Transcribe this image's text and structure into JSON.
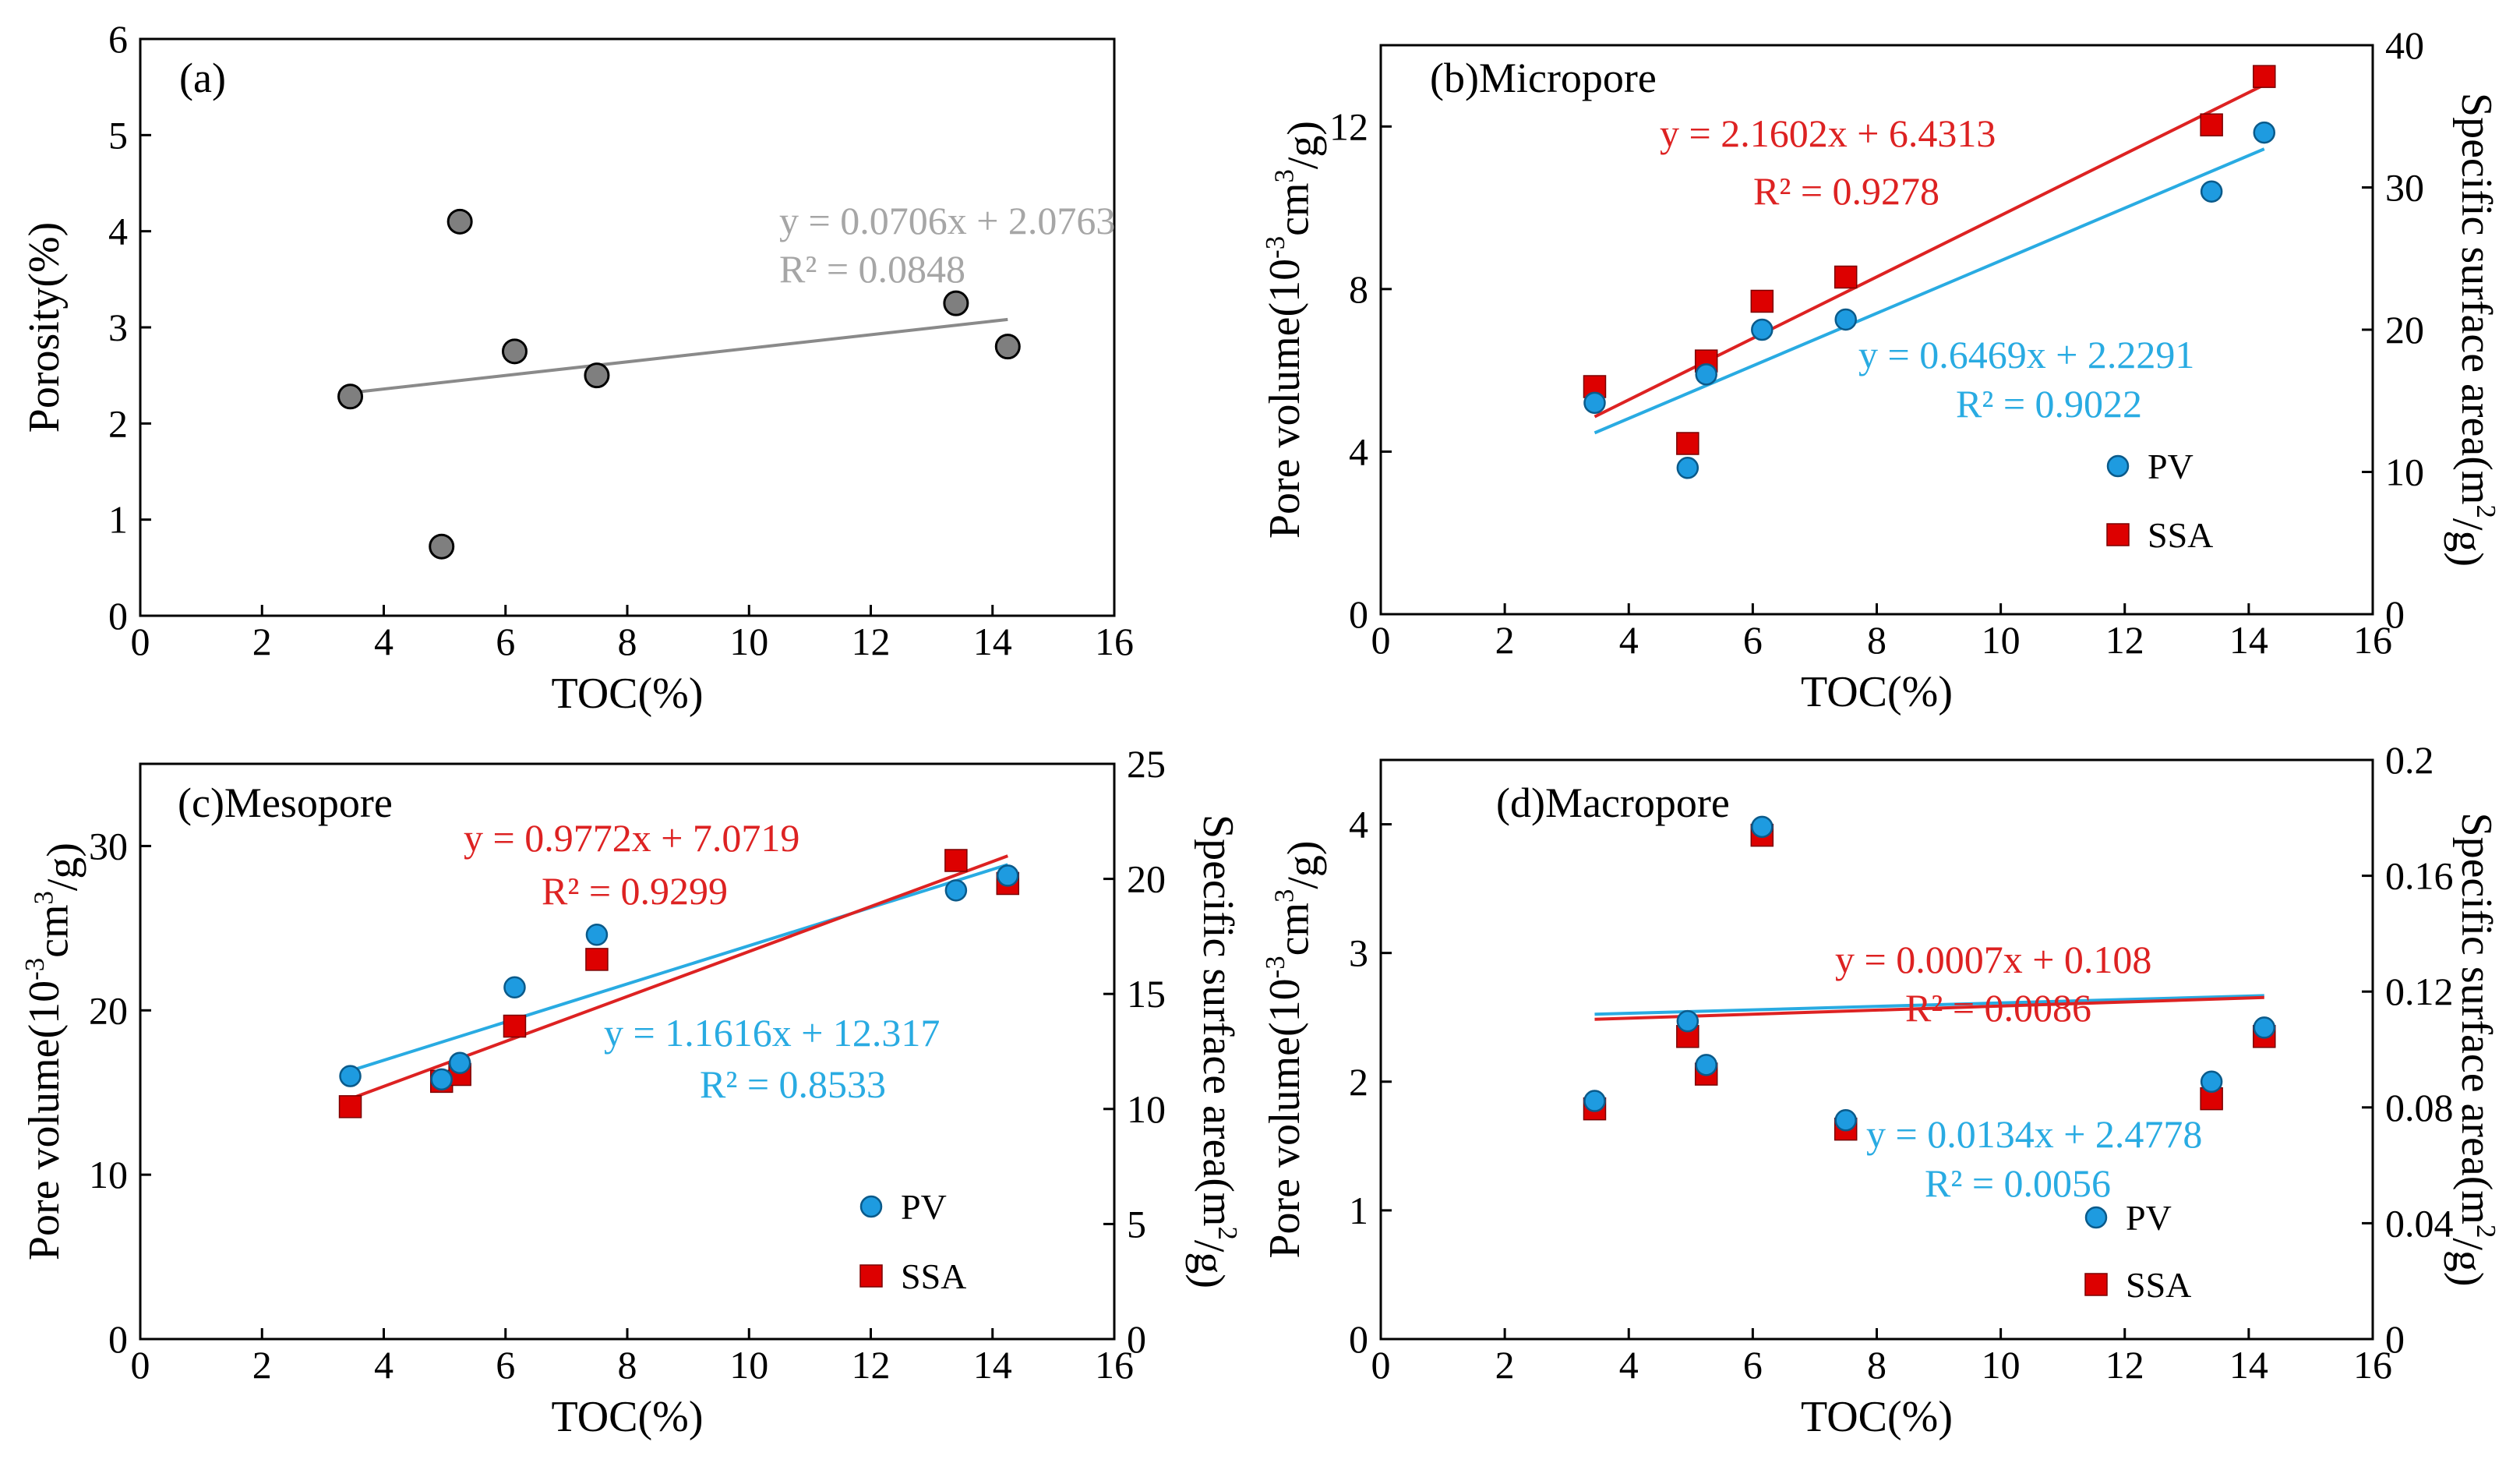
{
  "colors": {
    "pv": "#1e9be0",
    "ssa": "#dd0000",
    "fit_a": "#8a8a8a",
    "pts_a": "#7f7f7f",
    "pv_text": "#29abe2",
    "ssa_text": "#dd2222",
    "eq_a": "#a6a6a6"
  },
  "chart_data": [
    {
      "id": "a",
      "type": "scatter",
      "title": "(a)",
      "xlabel": "TOC(%)",
      "ylabel": "Porosity(%)",
      "xlim": [
        0,
        16
      ],
      "xticks": [
        0,
        2,
        4,
        6,
        8,
        10,
        12,
        14,
        16
      ],
      "ylim": [
        0,
        6
      ],
      "yticks": [
        0,
        1,
        2,
        3,
        4,
        5,
        6
      ],
      "series": [
        {
          "name": "Porosity",
          "axis": "left",
          "marker": "circle",
          "color": "#7f7f7f",
          "x": [
            3.45,
            4.95,
            5.25,
            6.15,
            7.5,
            13.4,
            14.25
          ],
          "y": [
            2.28,
            0.72,
            4.1,
            2.75,
            2.5,
            3.25,
            2.8
          ],
          "fit": {
            "slope": 0.0706,
            "intercept": 2.0763,
            "x0": 3.45,
            "x1": 14.25,
            "color": "#8a8a8a"
          },
          "equation": "y = 0.0706x + 2.0763",
          "r2": "R² = 0.0848"
        }
      ]
    },
    {
      "id": "b",
      "type": "scatter",
      "title": "(b)Micropore",
      "xlabel": "TOC(%)",
      "ylabel": "Pore volume(10⁻³cm³/g)",
      "ylabel_right": "Specific surface area(m²/g)",
      "xlim": [
        0,
        16
      ],
      "xticks": [
        0,
        2,
        4,
        6,
        8,
        10,
        12,
        14,
        16
      ],
      "ylim": [
        0,
        14
      ],
      "yticks": [
        0,
        4,
        8,
        12
      ],
      "ylim_right": [
        0,
        40
      ],
      "yticks_right": [
        0,
        10,
        20,
        30,
        40
      ],
      "series": [
        {
          "name": "PV",
          "axis": "left",
          "marker": "circle",
          "color": "#1e9be0",
          "x": [
            3.45,
            4.95,
            5.25,
            6.15,
            7.5,
            13.4,
            14.25
          ],
          "y": [
            5.2,
            3.6,
            5.9,
            7.0,
            7.25,
            10.4,
            11.85
          ],
          "fit": {
            "slope": 0.6469,
            "intercept": 2.2291,
            "x0": 3.45,
            "x1": 14.25,
            "color": "#29abe2"
          },
          "equation": "y = 0.6469x + 2.2291",
          "r2": "R² = 0.9022"
        },
        {
          "name": "SSA",
          "axis": "right",
          "marker": "square",
          "color": "#dd0000",
          "x": [
            3.45,
            4.95,
            5.25,
            6.15,
            7.5,
            13.4,
            14.25
          ],
          "y": [
            16.0,
            12.0,
            17.8,
            22.0,
            23.7,
            34.4,
            37.8
          ],
          "fit": {
            "slope": 2.1602,
            "intercept": 6.4313,
            "x0": 3.45,
            "x1": 14.25,
            "color": "#dd2222"
          },
          "equation": "y = 2.1602x + 6.4313",
          "r2": "R² = 0.9278"
        }
      ],
      "legend": [
        "PV",
        "SSA"
      ]
    },
    {
      "id": "c",
      "type": "scatter",
      "title": "(c)Mesopore",
      "xlabel": "TOC(%)",
      "ylabel": "Pore volume(10⁻³cm³/g)",
      "ylabel_right": "Specific surface area(m²/g)",
      "xlim": [
        0,
        16
      ],
      "xticks": [
        0,
        2,
        4,
        6,
        8,
        10,
        12,
        14,
        16
      ],
      "ylim": [
        0,
        35
      ],
      "yticks": [
        0,
        10,
        20,
        30
      ],
      "ylim_right": [
        0,
        25
      ],
      "yticks_right": [
        0,
        5,
        10,
        15,
        20,
        25
      ],
      "series": [
        {
          "name": "PV",
          "axis": "left",
          "marker": "circle",
          "color": "#1e9be0",
          "x": [
            3.45,
            4.95,
            5.25,
            6.15,
            7.5,
            13.4,
            14.25
          ],
          "y": [
            16.0,
            15.8,
            16.8,
            21.4,
            24.6,
            27.3,
            28.2
          ],
          "fit": {
            "slope": 1.1616,
            "intercept": 12.317,
            "x0": 3.45,
            "x1": 14.25,
            "color": "#29abe2"
          },
          "equation": "y = 1.1616x + 12.317",
          "r2": "R² = 0.8533"
        },
        {
          "name": "SSA",
          "axis": "right",
          "marker": "square",
          "color": "#dd0000",
          "x": [
            3.45,
            4.95,
            5.25,
            6.15,
            7.5,
            13.4,
            14.25
          ],
          "y": [
            10.1,
            11.2,
            11.5,
            13.6,
            16.5,
            20.8,
            19.8
          ],
          "fit": {
            "slope": 0.9772,
            "intercept": 7.0719,
            "x0": 3.45,
            "x1": 14.25,
            "color": "#dd2222"
          },
          "equation": "y = 0.9772x + 7.0719",
          "r2": "R² = 0.9299"
        }
      ],
      "legend": [
        "PV",
        "SSA"
      ]
    },
    {
      "id": "d",
      "type": "scatter",
      "title": "(d)Macropore",
      "xlabel": "TOC(%)",
      "ylabel": "Pore volume(10⁻³cm³/g)",
      "ylabel_right": "Specific surface area(m²/g)",
      "xlim": [
        0,
        16
      ],
      "xticks": [
        0,
        2,
        4,
        6,
        8,
        10,
        12,
        14,
        16
      ],
      "ylim": [
        0,
        4.5
      ],
      "yticks": [
        0,
        1,
        2,
        3,
        4
      ],
      "ylim_right": [
        0,
        0.2
      ],
      "yticks_right": [
        "0",
        "0.04",
        "0.08",
        "0.12",
        "0.16",
        "0.2"
      ],
      "series": [
        {
          "name": "PV",
          "axis": "left",
          "marker": "circle",
          "color": "#1e9be0",
          "x": [
            3.45,
            4.95,
            5.25,
            6.15,
            7.5,
            13.4,
            14.25
          ],
          "y": [
            1.85,
            2.47,
            2.13,
            3.98,
            1.7,
            2.0,
            2.42
          ],
          "fit": {
            "slope": 0.0134,
            "intercept": 2.4778,
            "x0": 3.45,
            "x1": 14.25,
            "color": "#29abe2"
          },
          "equation": "y = 0.0134x + 2.4778",
          "r2": "R² = 0.0056"
        },
        {
          "name": "SSA",
          "axis": "right",
          "marker": "square",
          "color": "#dd0000",
          "x": [
            3.45,
            4.95,
            5.25,
            6.15,
            7.5,
            13.4,
            14.25
          ],
          "y": [
            0.0795,
            0.1045,
            0.0915,
            0.174,
            0.0725,
            0.083,
            0.1045
          ],
          "fit": {
            "slope": 0.0007,
            "intercept": 0.108,
            "x0": 3.45,
            "x1": 14.25,
            "color": "#dd2222"
          },
          "equation": "y = 0.0007x + 0.108",
          "r2": "R² = 0.0086"
        }
      ],
      "legend": [
        "PV",
        "SSA"
      ]
    }
  ]
}
